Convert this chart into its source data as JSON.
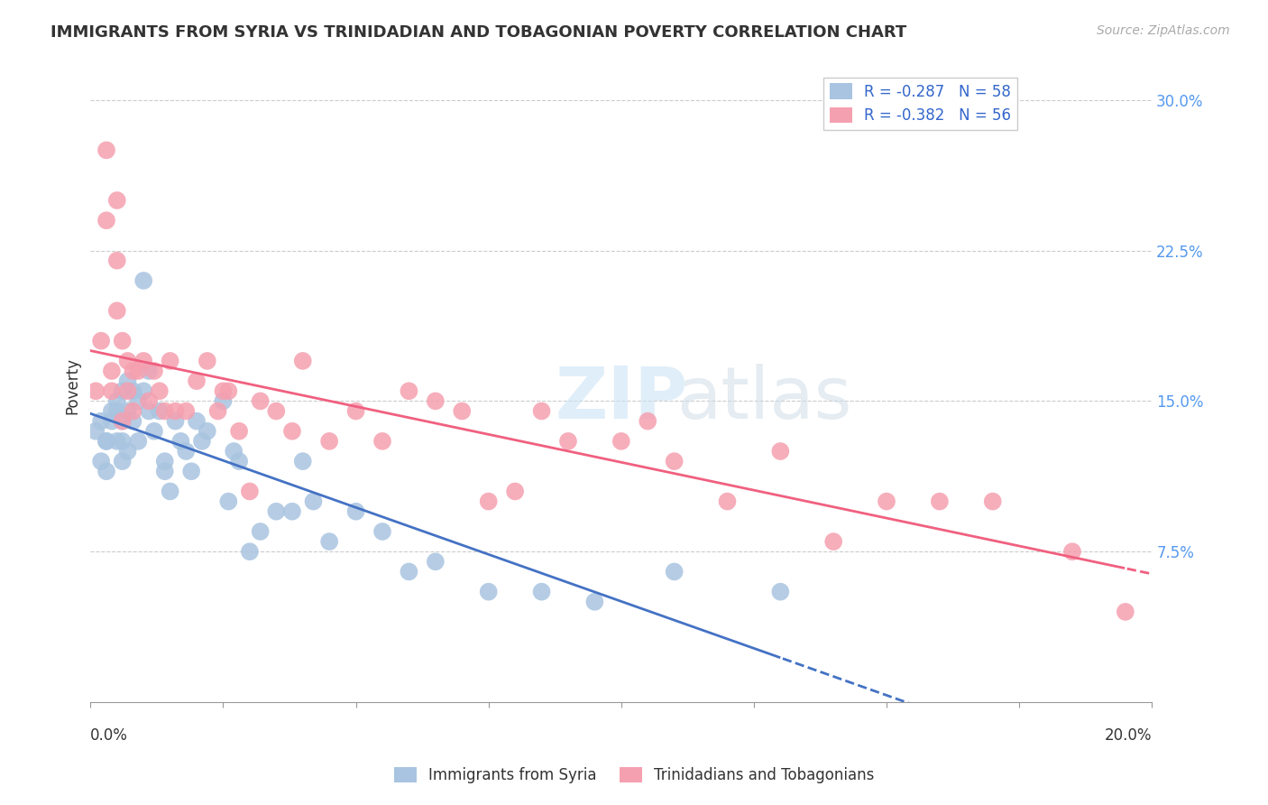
{
  "title": "IMMIGRANTS FROM SYRIA VS TRINIDADIAN AND TOBAGONIAN POVERTY CORRELATION CHART",
  "source": "Source: ZipAtlas.com",
  "ylabel": "Poverty",
  "ytick_labels": [
    "7.5%",
    "15.0%",
    "22.5%",
    "30.0%"
  ],
  "ytick_values": [
    0.075,
    0.15,
    0.225,
    0.3
  ],
  "xlim": [
    0.0,
    0.2
  ],
  "ylim": [
    0.0,
    0.315
  ],
  "legend_label1": "Immigrants from Syria",
  "legend_label2": "Trinidadians and Tobagonians",
  "r1": "-0.287",
  "n1": "58",
  "r2": "-0.382",
  "n2": "56",
  "color_syria": "#a8c4e0",
  "color_trinidadian": "#f5a0b0",
  "line_color_syria": "#4472c4",
  "line_color_trinidadian": "#f06080",
  "syria_x": [
    0.001,
    0.002,
    0.002,
    0.003,
    0.003,
    0.003,
    0.004,
    0.004,
    0.005,
    0.005,
    0.005,
    0.006,
    0.006,
    0.006,
    0.006,
    0.007,
    0.007,
    0.007,
    0.008,
    0.008,
    0.009,
    0.009,
    0.01,
    0.01,
    0.011,
    0.011,
    0.012,
    0.013,
    0.014,
    0.014,
    0.015,
    0.016,
    0.017,
    0.018,
    0.019,
    0.02,
    0.021,
    0.022,
    0.025,
    0.026,
    0.027,
    0.028,
    0.03,
    0.032,
    0.035,
    0.038,
    0.04,
    0.042,
    0.045,
    0.05,
    0.055,
    0.06,
    0.065,
    0.075,
    0.085,
    0.095,
    0.11,
    0.13
  ],
  "syria_y": [
    0.135,
    0.14,
    0.12,
    0.13,
    0.115,
    0.13,
    0.14,
    0.145,
    0.15,
    0.145,
    0.13,
    0.155,
    0.14,
    0.13,
    0.12,
    0.16,
    0.145,
    0.125,
    0.155,
    0.14,
    0.15,
    0.13,
    0.21,
    0.155,
    0.165,
    0.145,
    0.135,
    0.145,
    0.12,
    0.115,
    0.105,
    0.14,
    0.13,
    0.125,
    0.115,
    0.14,
    0.13,
    0.135,
    0.15,
    0.1,
    0.125,
    0.12,
    0.075,
    0.085,
    0.095,
    0.095,
    0.12,
    0.1,
    0.08,
    0.095,
    0.085,
    0.065,
    0.07,
    0.055,
    0.055,
    0.05,
    0.065,
    0.055
  ],
  "trinidadian_x": [
    0.001,
    0.002,
    0.003,
    0.003,
    0.004,
    0.004,
    0.005,
    0.005,
    0.005,
    0.006,
    0.006,
    0.007,
    0.007,
    0.008,
    0.008,
    0.009,
    0.01,
    0.011,
    0.012,
    0.013,
    0.014,
    0.015,
    0.016,
    0.018,
    0.02,
    0.022,
    0.024,
    0.025,
    0.026,
    0.028,
    0.03,
    0.032,
    0.035,
    0.038,
    0.04,
    0.045,
    0.05,
    0.055,
    0.06,
    0.065,
    0.07,
    0.075,
    0.08,
    0.085,
    0.09,
    0.1,
    0.105,
    0.11,
    0.12,
    0.13,
    0.14,
    0.15,
    0.16,
    0.17,
    0.185,
    0.195
  ],
  "trinidadian_y": [
    0.155,
    0.18,
    0.275,
    0.24,
    0.165,
    0.155,
    0.25,
    0.22,
    0.195,
    0.18,
    0.14,
    0.17,
    0.155,
    0.165,
    0.145,
    0.165,
    0.17,
    0.15,
    0.165,
    0.155,
    0.145,
    0.17,
    0.145,
    0.145,
    0.16,
    0.17,
    0.145,
    0.155,
    0.155,
    0.135,
    0.105,
    0.15,
    0.145,
    0.135,
    0.17,
    0.13,
    0.145,
    0.13,
    0.155,
    0.15,
    0.145,
    0.1,
    0.105,
    0.145,
    0.13,
    0.13,
    0.14,
    0.12,
    0.1,
    0.125,
    0.08,
    0.1,
    0.1,
    0.1,
    0.075,
    0.045
  ]
}
